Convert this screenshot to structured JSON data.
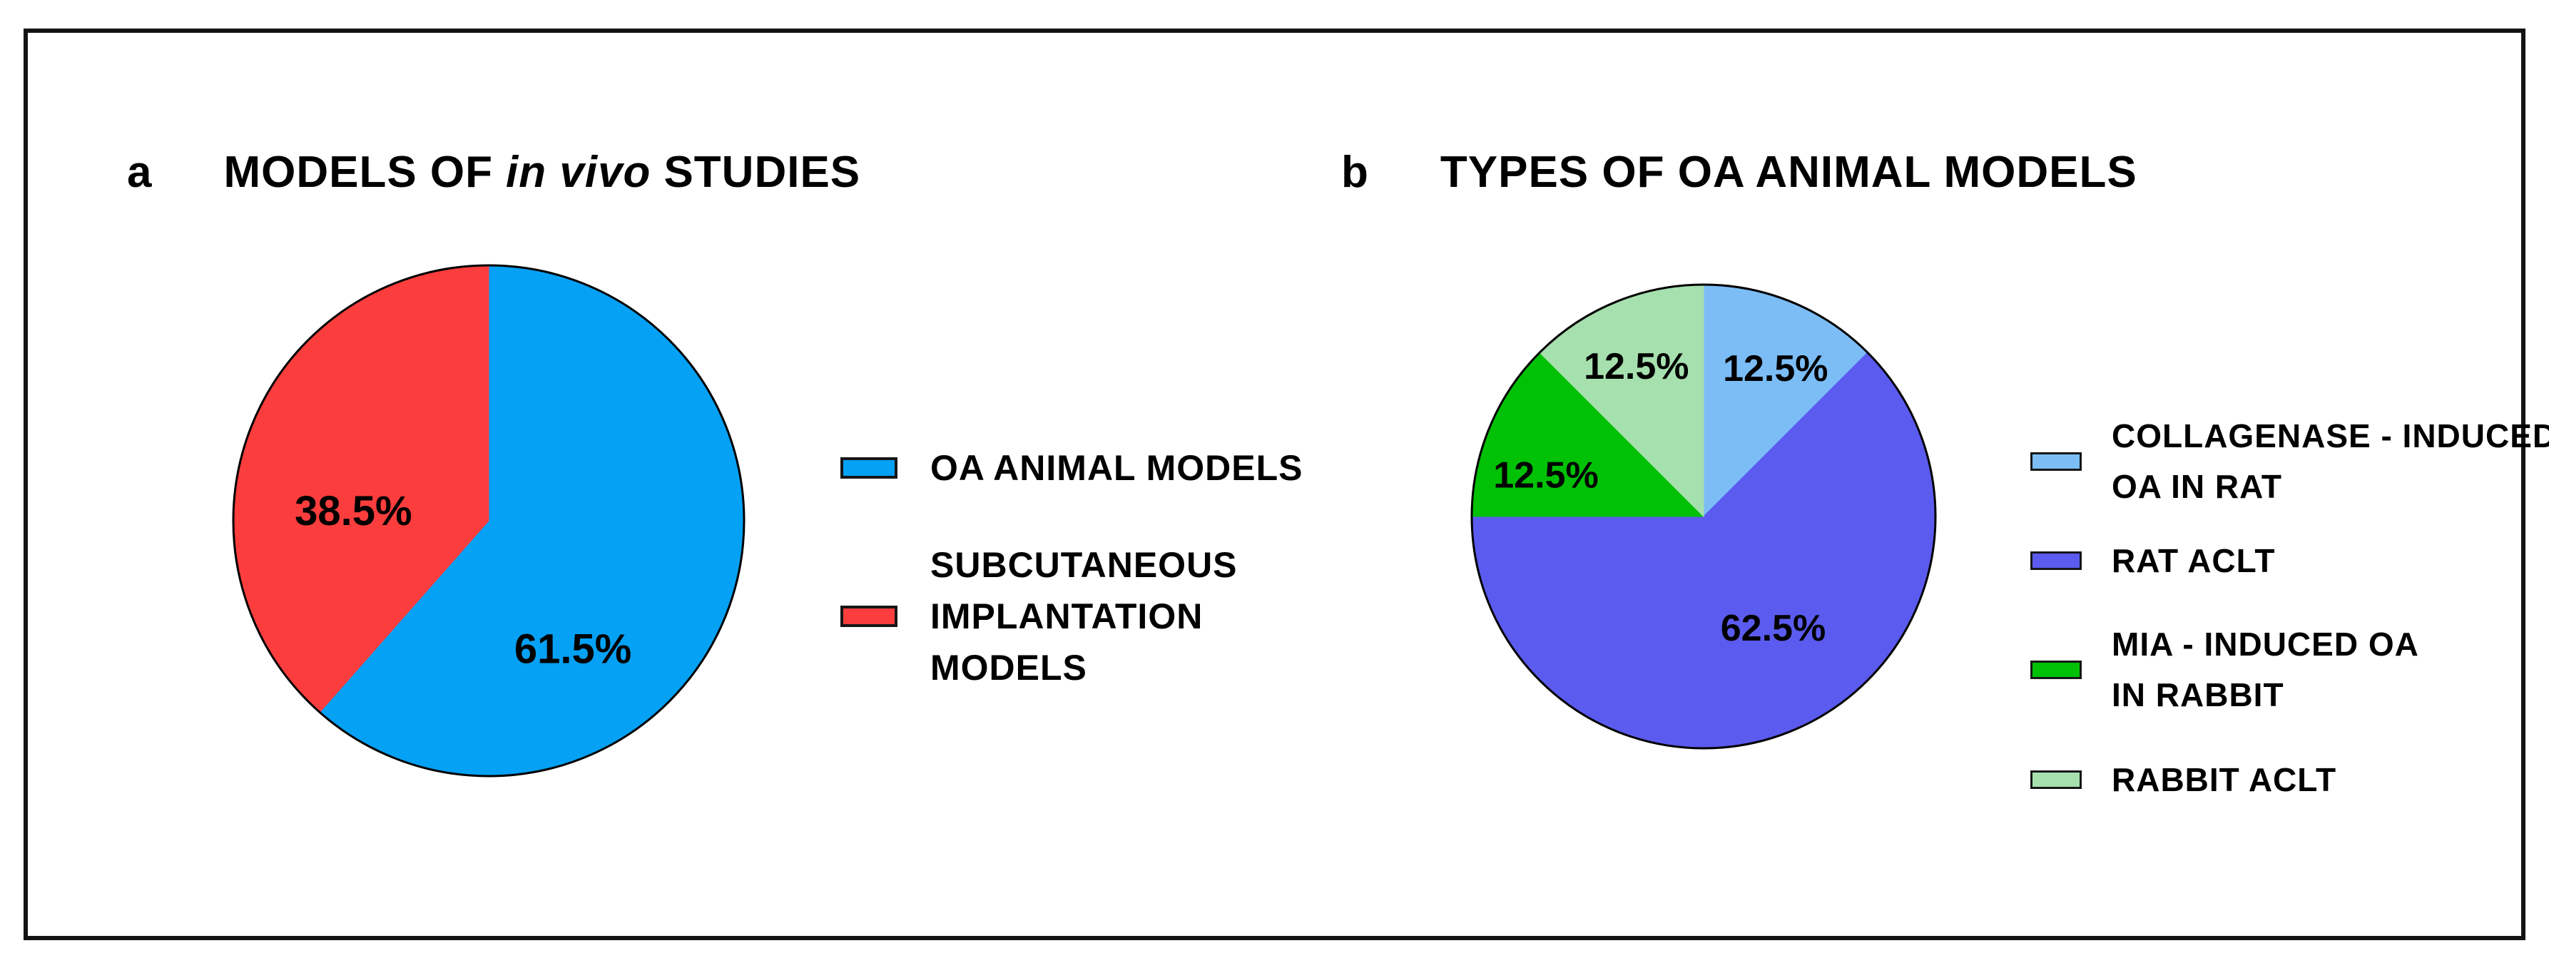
{
  "figure": {
    "panels": [
      {
        "id": "a",
        "label": "a",
        "title": {
          "prefix": "MODELS OF",
          "italic": "in vivo",
          "suffix": "STUDIES"
        },
        "legend": [
          {
            "color": "#05a1f5",
            "label_lines": [
              "OA ANIMAL MODELS"
            ]
          },
          {
            "color": "#fc3d3d",
            "label_lines": [
              "SUBCUTANEOUS",
              "IMPLANTATION",
              "MODELS"
            ]
          }
        ]
      },
      {
        "id": "b",
        "label": "b",
        "title": {
          "prefix": "TYPES OF OA ANIMAL MODELS",
          "italic": "",
          "suffix": ""
        },
        "legend": [
          {
            "color": "#7cbdf6",
            "label_lines": [
              "COLLAGENASE - INDUCED",
              "OA IN RAT"
            ]
          },
          {
            "color": "#5b5bef",
            "label_lines": [
              "RAT ACLT"
            ]
          },
          {
            "color": "#00c105",
            "label_lines": [
              "MIA - INDUCED OA",
              "IN RABBIT"
            ]
          },
          {
            "color": "#a6e0ae",
            "label_lines": [
              "RABBIT ACLT"
            ]
          }
        ]
      }
    ]
  },
  "chart_data": [
    {
      "type": "pie",
      "panel": "a",
      "title": "MODELS OF in vivo STUDIES",
      "categories": [
        "OA ANIMAL MODELS",
        "SUBCUTANEOUS IMPLANTATION MODELS"
      ],
      "values": [
        61.5,
        38.5
      ],
      "unit": "percent",
      "slice_labels": [
        "61.5%",
        "38.5%"
      ],
      "colors": [
        "#05a1f5",
        "#fc3d3d"
      ],
      "start_angle": "12 o'clock",
      "direction": "clockwise",
      "outline_color": "#000000",
      "legend_position": "right",
      "label_pos": [
        [
          0.33,
          0.5
        ],
        [
          -0.53,
          -0.04
        ]
      ]
    },
    {
      "type": "pie",
      "panel": "b",
      "title": "TYPES OF OA ANIMAL MODELS",
      "categories": [
        "COLLAGENASE - INDUCED OA IN RAT",
        "RAT ACLT",
        "MIA - INDUCED OA IN RABBIT",
        "RABBIT ACLT"
      ],
      "values": [
        12.5,
        62.5,
        12.5,
        12.5
      ],
      "unit": "percent",
      "slice_labels": [
        "12.5%",
        "62.5%",
        "12.5%",
        "12.5%"
      ],
      "colors": [
        "#7cbdf6",
        "#5b5bef",
        "#00c105",
        "#a6e0ae"
      ],
      "start_angle": "12 o'clock",
      "direction": "clockwise",
      "outline_color": "#000000",
      "legend_position": "right",
      "label_pos": [
        [
          0.31,
          -0.64
        ],
        [
          0.3,
          0.48
        ],
        [
          -0.68,
          -0.18
        ],
        [
          -0.29,
          -0.65
        ]
      ]
    }
  ]
}
